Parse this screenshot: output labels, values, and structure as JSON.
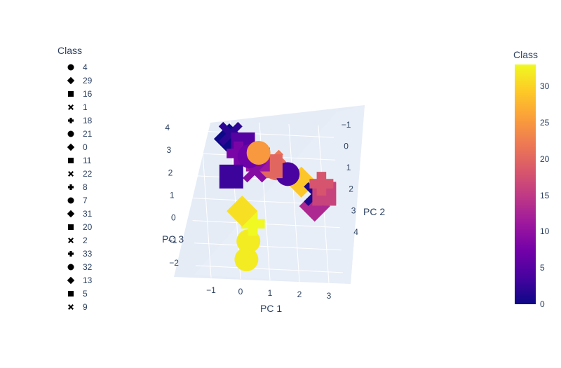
{
  "legend": {
    "title": "Class",
    "items": [
      {
        "label": "4",
        "symbol": "circle"
      },
      {
        "label": "29",
        "symbol": "diamond"
      },
      {
        "label": "16",
        "symbol": "square"
      },
      {
        "label": "1",
        "symbol": "x"
      },
      {
        "label": "18",
        "symbol": "cross"
      },
      {
        "label": "21",
        "symbol": "circle"
      },
      {
        "label": "0",
        "symbol": "diamond"
      },
      {
        "label": "11",
        "symbol": "square"
      },
      {
        "label": "22",
        "symbol": "x"
      },
      {
        "label": "8",
        "symbol": "cross"
      },
      {
        "label": "7",
        "symbol": "circle"
      },
      {
        "label": "31",
        "symbol": "diamond"
      },
      {
        "label": "20",
        "symbol": "square"
      },
      {
        "label": "2",
        "symbol": "x"
      },
      {
        "label": "33",
        "symbol": "cross"
      },
      {
        "label": "32",
        "symbol": "circle"
      },
      {
        "label": "13",
        "symbol": "diamond"
      },
      {
        "label": "5",
        "symbol": "square"
      },
      {
        "label": "9",
        "symbol": "x"
      }
    ]
  },
  "colorbar": {
    "title": "Class",
    "ticks": [
      "0",
      "5",
      "10",
      "15",
      "20",
      "25",
      "30"
    ],
    "tick_values": [
      0,
      5,
      10,
      15,
      20,
      25,
      30
    ],
    "range": [
      0,
      33
    ],
    "colorscale": [
      "#0d0887",
      "#46039f",
      "#7201a8",
      "#9c179e",
      "#bd3786",
      "#d8576b",
      "#ed7953",
      "#fb9f3a",
      "#fdca26",
      "#f0f921"
    ]
  },
  "chart_data": {
    "type": "scatter",
    "subtype": "3d-scatter",
    "axes": {
      "x": {
        "label": "PC 1",
        "ticks": [
          "−1",
          "0",
          "1",
          "2",
          "3"
        ],
        "range": [
          -1.5,
          3.5
        ]
      },
      "y": {
        "label": "PC 2",
        "ticks": [
          "−1",
          "0",
          "1",
          "2",
          "3",
          "4"
        ],
        "range": [
          -1.5,
          4.2
        ]
      },
      "z": {
        "label": "PC 3",
        "ticks": [
          "−2",
          "−1",
          "0",
          "1",
          "2",
          "3",
          "4"
        ],
        "range": [
          -2.5,
          4.5
        ]
      }
    },
    "grid": true,
    "legend_position": "left",
    "colorbar_position": "right",
    "points": [
      {
        "x": 0.0,
        "y": 1.2,
        "z": -2.0,
        "class": 32,
        "symbol": "circle"
      },
      {
        "x": 0.1,
        "y": 1.3,
        "z": -1.2,
        "class": 32,
        "symbol": "circle"
      },
      {
        "x": 0.3,
        "y": 1.2,
        "z": -0.4,
        "class": 33,
        "symbol": "cross"
      },
      {
        "x": 0.0,
        "y": 0.8,
        "z": 0.2,
        "class": 31,
        "symbol": "diamond"
      },
      {
        "x": 2.2,
        "y": -0.5,
        "z": 1.8,
        "class": 29,
        "symbol": "diamond"
      },
      {
        "x": 2.5,
        "y": 0.6,
        "z": 0.6,
        "class": 13,
        "symbol": "diamond"
      },
      {
        "x": 2.6,
        "y": 0.2,
        "z": 1.2,
        "class": 1,
        "symbol": "x"
      },
      {
        "x": 3.0,
        "y": -1.0,
        "z": 1.4,
        "class": 16,
        "symbol": "square"
      },
      {
        "x": 2.9,
        "y": -0.7,
        "z": 1.8,
        "class": 18,
        "symbol": "cross"
      },
      {
        "x": 1.2,
        "y": -0.2,
        "z": 2.6,
        "class": 22,
        "symbol": "x"
      },
      {
        "x": 1.4,
        "y": -0.8,
        "z": 2.4,
        "class": 21,
        "symbol": "circle"
      },
      {
        "x": 1.8,
        "y": -1.0,
        "z": 2.2,
        "class": 4,
        "symbol": "circle"
      },
      {
        "x": 1.1,
        "y": 0.5,
        "z": 2.3,
        "class": 20,
        "symbol": "square"
      },
      {
        "x": 0.7,
        "y": 0.3,
        "z": 2.6,
        "class": 11,
        "symbol": "square"
      },
      {
        "x": -0.2,
        "y": 0.0,
        "z": 3.5,
        "class": 0,
        "symbol": "diamond"
      },
      {
        "x": -0.1,
        "y": -0.5,
        "z": 3.8,
        "class": 2,
        "symbol": "x"
      },
      {
        "x": 0.2,
        "y": 0.6,
        "z": 3.2,
        "class": 5,
        "symbol": "square"
      },
      {
        "x": 0.5,
        "y": 1.0,
        "z": 2.0,
        "class": 9,
        "symbol": "x"
      },
      {
        "x": 0.1,
        "y": -0.2,
        "z": 2.9,
        "class": 8,
        "symbol": "cross"
      },
      {
        "x": 0.4,
        "y": 0.5,
        "z": 2.7,
        "class": 7,
        "symbol": "circle"
      },
      {
        "x": 0.8,
        "y": -0.4,
        "z": 3.0,
        "class": 25,
        "symbol": "circle"
      },
      {
        "x": -0.3,
        "y": 0.9,
        "z": 1.7,
        "class": 3,
        "symbol": "square"
      }
    ]
  }
}
